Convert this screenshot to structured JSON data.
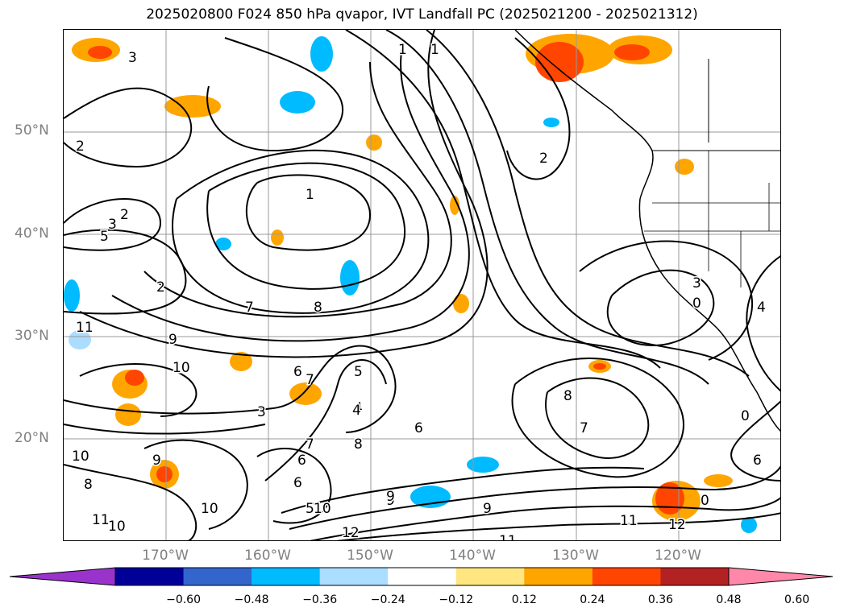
{
  "title": "2025020800 F024 850 hPa qvapor, IVT Landfall PC (2025021200 - 2025021312)",
  "map": {
    "lat_labels": [
      "50°N",
      "40°N",
      "30°N",
      "20°N"
    ],
    "lon_labels": [
      "170°W",
      "160°W",
      "150°W",
      "140°W",
      "130°W",
      "120°W"
    ],
    "contour_labels": [
      "3",
      "2",
      "1",
      "1",
      "2",
      "2",
      "1",
      "3",
      "5",
      "2",
      "7",
      "8",
      "9",
      "10",
      "11",
      "6",
      "5",
      "4",
      "6",
      "7",
      "8",
      "9",
      "10",
      "11",
      "12",
      "11",
      "12",
      "6",
      "7",
      "8",
      "4",
      "3",
      "0",
      "0",
      "10",
      "11",
      "10",
      "8",
      "9",
      "10",
      "9",
      "6",
      "5",
      "4",
      "3",
      "7",
      "6",
      "8",
      "9",
      "0"
    ]
  },
  "colorbar": {
    "ticks": [
      "−0.60",
      "−0.48",
      "−0.36",
      "−0.24",
      "−0.12",
      "0.12",
      "0.24",
      "0.36",
      "0.48",
      "0.60"
    ],
    "colors": [
      "#9933cc",
      "#000099",
      "#3366cc",
      "#00bbff",
      "#aaddff",
      "#ffffff",
      "#ffe680",
      "#ffa500",
      "#ff4500",
      "#b22222",
      "#ff88aa"
    ],
    "extend_colors": {
      "low": "#9933cc",
      "high": "#ff88aa"
    }
  }
}
